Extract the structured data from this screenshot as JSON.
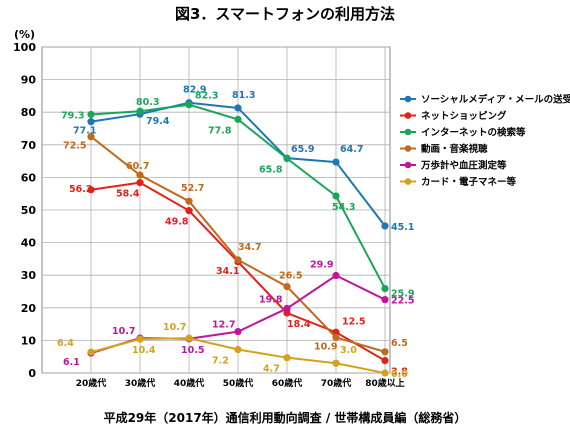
{
  "chart_data": {
    "type": "line",
    "title": "図3．スマートフォンの利用方法",
    "footer": "平成29年（2017年）通信利用動向調査 / 世帯構成員編（総務省）",
    "ylabel": "(%)",
    "ylim": [
      0,
      100
    ],
    "yticks": [
      0,
      10,
      20,
      30,
      40,
      50,
      60,
      70,
      80,
      90,
      100
    ],
    "categories": [
      "20歳代",
      "30歳代",
      "40歳代",
      "50歳代",
      "60歳代",
      "70歳代",
      "80歳以上"
    ],
    "grid": true,
    "legend_position": "right",
    "series": [
      {
        "name": "ソーシャルメディア・メールの送受信",
        "color": "#1f77b4",
        "values": [
          77.1,
          79.4,
          82.9,
          81.3,
          65.9,
          64.7,
          45.1
        ]
      },
      {
        "name": "ネットショッピング",
        "color": "#e3211c",
        "values": [
          56.2,
          58.4,
          49.8,
          34.1,
          18.4,
          12.5,
          3.8
        ]
      },
      {
        "name": "インターネットの検索等",
        "color": "#1aa65a",
        "values": [
          79.3,
          80.3,
          82.3,
          77.8,
          65.8,
          54.3,
          25.9
        ]
      },
      {
        "name": "動画・音楽視聴",
        "color": "#c26a1b",
        "values": [
          72.5,
          60.7,
          52.7,
          34.7,
          26.5,
          10.9,
          6.5
        ]
      },
      {
        "name": "万歩計や血圧測定等",
        "color": "#c0149c",
        "values": [
          6.1,
          10.7,
          10.5,
          12.7,
          19.8,
          29.9,
          22.5
        ]
      },
      {
        "name": "カード・電子マネー等",
        "color": "#d4a21a",
        "values": [
          6.4,
          10.4,
          10.7,
          7.2,
          4.7,
          3.0,
          0.0
        ]
      }
    ]
  }
}
